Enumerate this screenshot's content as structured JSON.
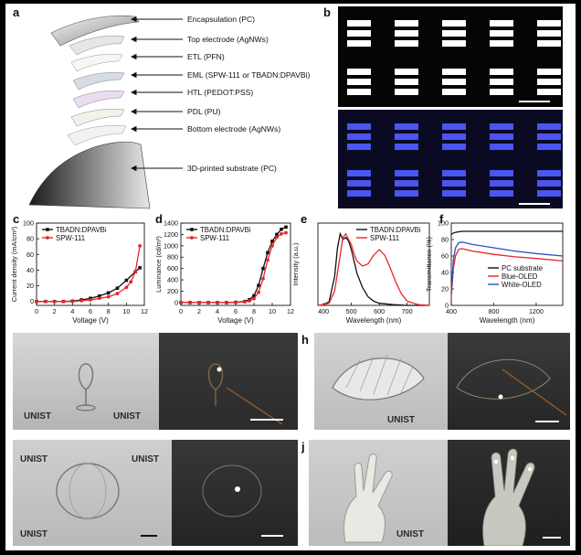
{
  "panels": {
    "a": "a",
    "b": "b",
    "c": "c",
    "d": "d",
    "e": "e",
    "f": "f",
    "g": "g",
    "h": "h",
    "i": "i",
    "j": "j"
  },
  "panel_a": {
    "layers": [
      "Encapsulation (PC)",
      "Top electrode (AgNWs)",
      "ETL (PFN)",
      "EML (SPW-111 or TBADN:DPAVBi)",
      "HTL (PEDOT:PSS)",
      "PDL (PU)",
      "Bottom electrode (AgNWs)",
      "3D-printed substrate (PC)"
    ]
  },
  "panel_b": {
    "top_pixel_color": "#ffffff",
    "bottom_pixel_color": "#4b55f2"
  },
  "photos": {
    "logo_text": "UNIST"
  },
  "chart_data": [
    {
      "type": "line",
      "panel": "c",
      "xlabel": "Voltage (V)",
      "ylabel": "Current density (mA/cm²)",
      "xlim": [
        0,
        12
      ],
      "ylim": [
        -5,
        100
      ],
      "xticks": [
        0,
        2,
        4,
        6,
        8,
        10,
        12
      ],
      "yticks": [
        0,
        20,
        40,
        60,
        80,
        100
      ],
      "series": [
        {
          "name": "TBADN:DPAVBi",
          "color": "#111111",
          "marker": "square",
          "x": [
            0,
            1,
            2,
            3,
            4,
            5,
            6,
            7,
            8,
            9,
            10,
            11,
            11.5
          ],
          "y": [
            0,
            0,
            0,
            0,
            0.5,
            2,
            4,
            7,
            11,
            17,
            27,
            38,
            43
          ]
        },
        {
          "name": "SPW-111",
          "color": "#e8252a",
          "marker": "circle",
          "x": [
            0,
            1,
            2,
            3,
            4,
            5,
            6,
            7,
            8,
            9,
            10,
            10.5,
            11,
            11.5
          ],
          "y": [
            0,
            0,
            0,
            0,
            0,
            1,
            2,
            4,
            6,
            10,
            18,
            25,
            38,
            71
          ]
        }
      ]
    },
    {
      "type": "line",
      "panel": "d",
      "xlabel": "Voltage (V)",
      "ylabel": "Luminance (cd/m²)",
      "xlim": [
        0,
        12
      ],
      "ylim": [
        -50,
        1400
      ],
      "xticks": [
        0,
        2,
        4,
        6,
        8,
        10,
        12
      ],
      "yticks": [
        0,
        200,
        400,
        600,
        800,
        1000,
        1200,
        1400
      ],
      "series": [
        {
          "name": "TBADN:DPAVBi",
          "color": "#111111",
          "marker": "square",
          "x": [
            0,
            1,
            2,
            3,
            4,
            5,
            6,
            7,
            7.5,
            8,
            8.5,
            9,
            9.5,
            10,
            10.5,
            11,
            11.5
          ],
          "y": [
            0,
            0,
            0,
            0,
            0,
            0,
            5,
            20,
            50,
            120,
            300,
            600,
            880,
            1080,
            1200,
            1290,
            1330
          ]
        },
        {
          "name": "SPW-111",
          "color": "#e8252a",
          "marker": "circle",
          "x": [
            0,
            1,
            2,
            3,
            4,
            5,
            6,
            7,
            7.5,
            8,
            8.5,
            9,
            9.5,
            10,
            10.5,
            11,
            11.5
          ],
          "y": [
            0,
            0,
            0,
            0,
            0,
            0,
            3,
            12,
            30,
            70,
            180,
            420,
            750,
            1000,
            1150,
            1210,
            1230
          ]
        }
      ]
    },
    {
      "type": "line",
      "panel": "e",
      "xlabel": "Wavelength (nm)",
      "ylabel": "Intensity (a.u.)",
      "xlim": [
        380,
        780
      ],
      "ylim": [
        0,
        1.15
      ],
      "xticks": [
        400,
        500,
        600,
        700
      ],
      "series": [
        {
          "name": "TBADN:DPAVBi",
          "color": "#111111",
          "x": [
            380,
            400,
            420,
            440,
            450,
            460,
            470,
            480,
            490,
            500,
            520,
            540,
            560,
            580,
            600,
            650,
            700,
            780
          ],
          "y": [
            0,
            0.01,
            0.05,
            0.4,
            0.8,
            1.0,
            0.92,
            0.95,
            0.9,
            0.78,
            0.45,
            0.25,
            0.12,
            0.06,
            0.03,
            0.01,
            0,
            0
          ]
        },
        {
          "name": "SPW-111",
          "color": "#e8252a",
          "x": [
            380,
            400,
            420,
            440,
            460,
            470,
            480,
            490,
            500,
            510,
            520,
            540,
            560,
            580,
            600,
            620,
            640,
            660,
            680,
            700,
            740,
            780
          ],
          "y": [
            0,
            0.01,
            0.03,
            0.2,
            0.7,
            0.95,
            1.0,
            0.92,
            0.85,
            0.72,
            0.62,
            0.55,
            0.58,
            0.7,
            0.78,
            0.7,
            0.52,
            0.32,
            0.16,
            0.06,
            0.01,
            0
          ]
        }
      ]
    },
    {
      "type": "line",
      "panel": "f",
      "xlabel": "Wavelength (nm)",
      "ylabel": "Transmittance (%)",
      "xlim": [
        400,
        1450
      ],
      "ylim": [
        0,
        100
      ],
      "xticks": [
        400,
        800,
        1200
      ],
      "yticks": [
        0,
        20,
        40,
        60,
        80,
        100
      ],
      "series": [
        {
          "name": "PC substrate",
          "color": "#111111",
          "x": [
            400,
            420,
            450,
            500,
            600,
            800,
            1000,
            1200,
            1450
          ],
          "y": [
            86,
            88,
            89,
            90,
            90,
            90,
            90,
            90,
            90
          ]
        },
        {
          "name": "Blue-OLED",
          "color": "#e8252a",
          "x": [
            400,
            420,
            440,
            470,
            500,
            600,
            800,
            1000,
            1200,
            1450
          ],
          "y": [
            10,
            45,
            60,
            68,
            69,
            66,
            62,
            59,
            57,
            54
          ]
        },
        {
          "name": "White-OLED",
          "color": "#2d4fc4",
          "x": [
            400,
            420,
            440,
            470,
            500,
            600,
            800,
            1000,
            1200,
            1450
          ],
          "y": [
            15,
            55,
            70,
            76,
            77,
            74,
            70,
            66,
            63,
            60
          ]
        }
      ]
    }
  ]
}
